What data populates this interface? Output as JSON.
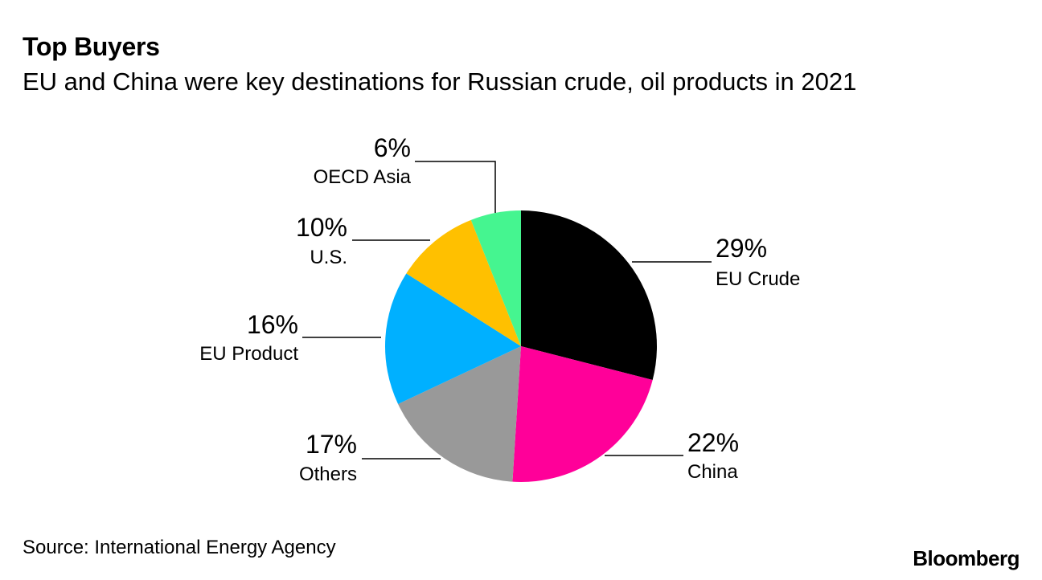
{
  "chart_data": {
    "type": "pie",
    "title": "Top Buyers",
    "subtitle": "EU and China were key destinations for Russian crude, oil products in 2021",
    "slices": [
      {
        "label": "EU Crude",
        "value": 29,
        "value_label": "29%",
        "color": "#000000"
      },
      {
        "label": "China",
        "value": 22,
        "value_label": "22%",
        "color": "#ff0099"
      },
      {
        "label": "Others",
        "value": 17,
        "value_label": "17%",
        "color": "#999999"
      },
      {
        "label": "EU Product",
        "value": 16,
        "value_label": "16%",
        "color": "#00b0ff"
      },
      {
        "label": "U.S.",
        "value": 10,
        "value_label": "10%",
        "color": "#ffc000"
      },
      {
        "label": "OECD Asia",
        "value": 6,
        "value_label": "6%",
        "color": "#45f590"
      }
    ],
    "start_angle": "12 o'clock",
    "direction": "clockwise",
    "labels": "outside with leader lines"
  },
  "footer": {
    "source": "Source: International Energy Agency",
    "brand": "Bloomberg"
  }
}
